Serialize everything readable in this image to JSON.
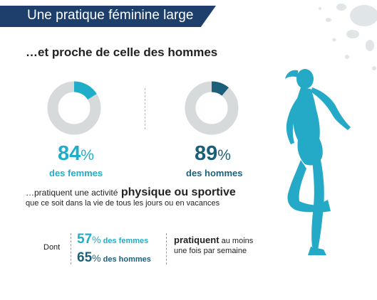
{
  "header": {
    "title": "Une pratique féminine large",
    "subtitle": "…et proche de celle des hommes"
  },
  "colors": {
    "banner": "#1e3f6c",
    "women": "#1faec8",
    "men": "#1b5f7a",
    "track": "#d7dadb",
    "runner": "#24a9c6"
  },
  "chart_data": [
    {
      "type": "pie",
      "style": "donut",
      "values": [
        16,
        84
      ],
      "labels": [
        "",
        ""
      ],
      "highlight_value": 84,
      "highlight_color": "#1faec8",
      "value_label": "84",
      "unit": "%",
      "caption": "des femmes"
    },
    {
      "type": "pie",
      "style": "donut",
      "values": [
        11,
        89
      ],
      "labels": [
        "",
        ""
      ],
      "highlight_value": 89,
      "highlight_color": "#1b5f7a",
      "value_label": "89",
      "unit": "%",
      "caption": "des hommes"
    }
  ],
  "statement": {
    "prefix": "…pratiquent une activité",
    "emphasis": "physique ou sportive",
    "line2": "que ce soit dans la vie de tous les jours ou en vacances"
  },
  "frequency": {
    "dont": "Dont",
    "women_value": "57",
    "women_label": "des femmes",
    "men_value": "65",
    "men_label": "des hommes",
    "unit": "%",
    "bold": "pratiquent",
    "rest1": "au moins",
    "rest2": "une fois par semaine"
  }
}
